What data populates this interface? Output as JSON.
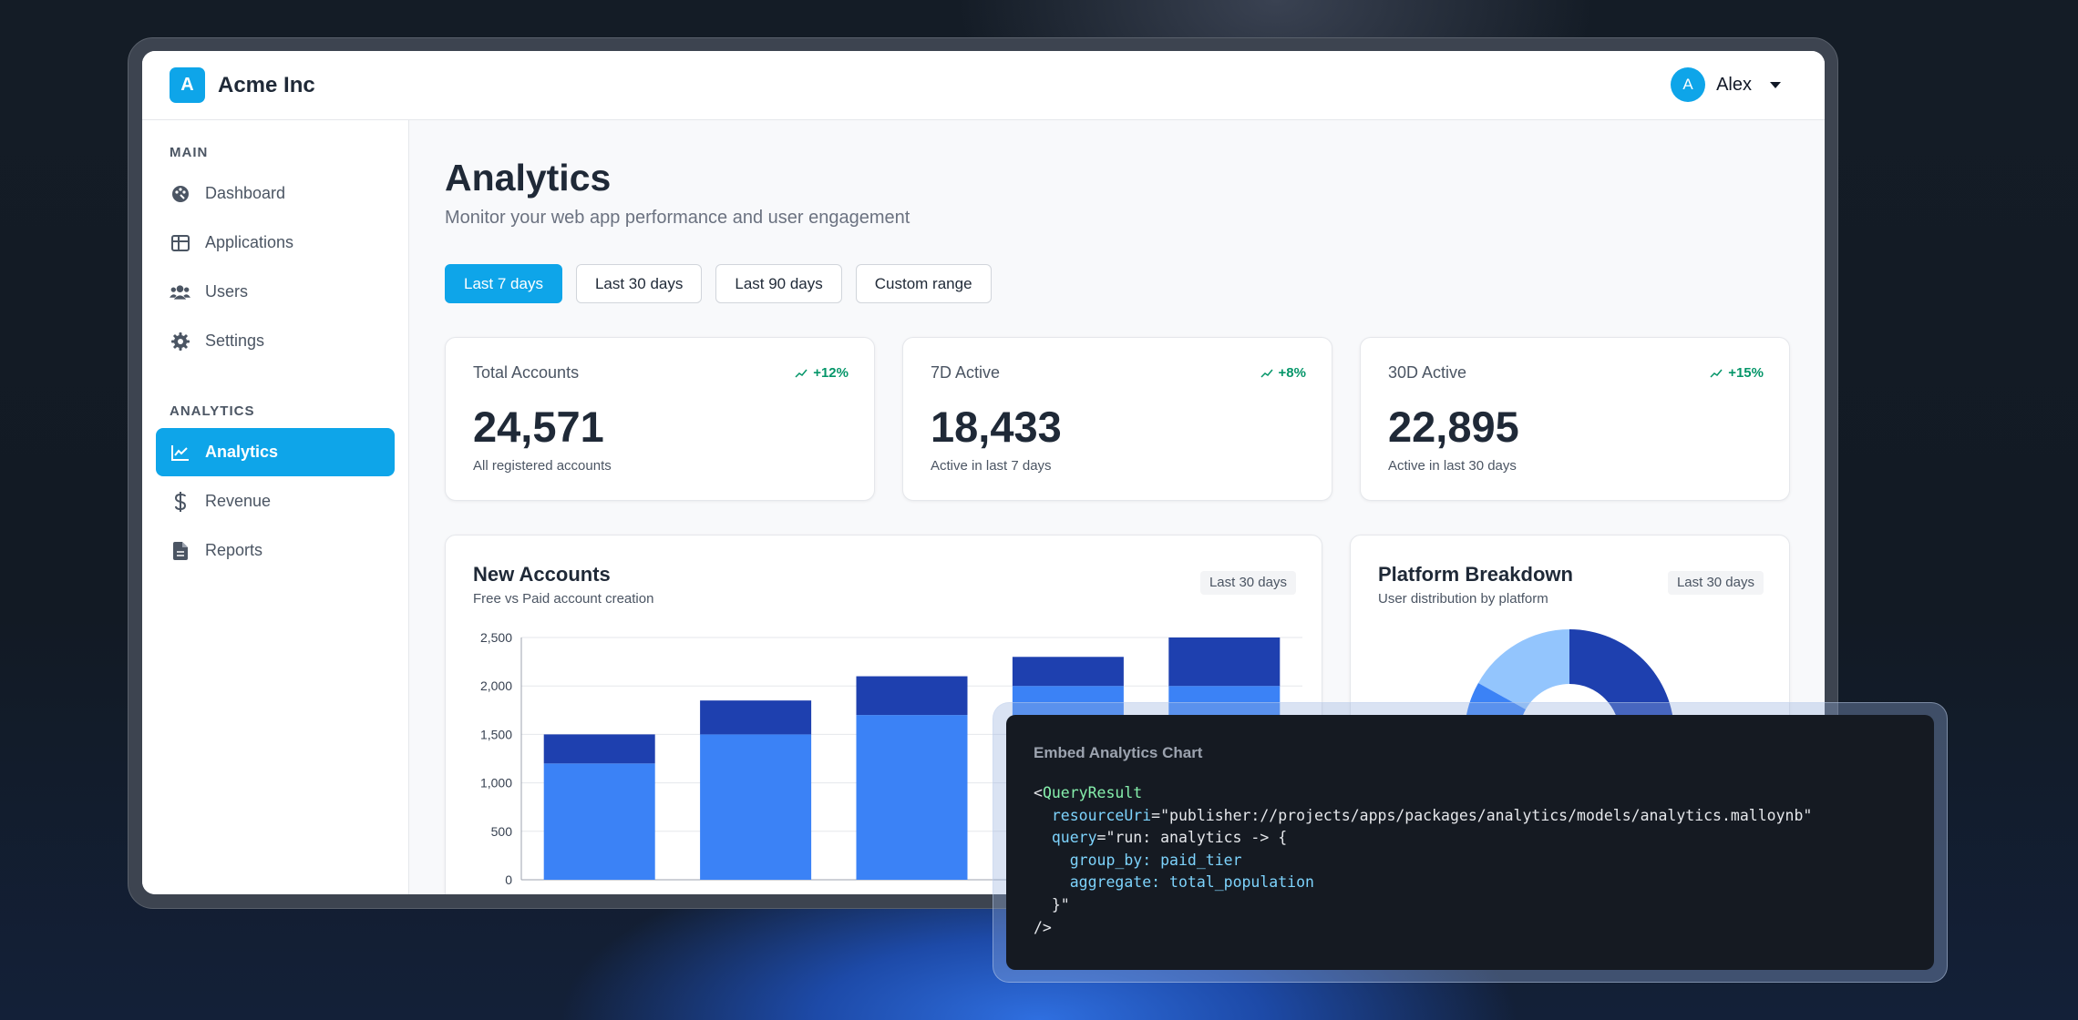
{
  "app": {
    "brand_initial": "A",
    "brand_name": "Acme Inc",
    "user": {
      "initial": "A",
      "name": "Alex"
    }
  },
  "sidebar": {
    "sections": [
      {
        "label": "MAIN"
      },
      {
        "label": "ANALYTICS"
      }
    ],
    "items": [
      {
        "label": "Dashboard",
        "icon": "palette-icon"
      },
      {
        "label": "Applications",
        "icon": "grid-icon"
      },
      {
        "label": "Users",
        "icon": "users-icon"
      },
      {
        "label": "Settings",
        "icon": "gear-icon"
      },
      {
        "label": "Analytics",
        "icon": "chart-line-icon",
        "active": true
      },
      {
        "label": "Revenue",
        "icon": "dollar-icon"
      },
      {
        "label": "Reports",
        "icon": "document-icon"
      }
    ]
  },
  "page": {
    "title": "Analytics",
    "subtitle": "Monitor your web app performance and user engagement",
    "ranges": [
      "Last 7 days",
      "Last 30 days",
      "Last 90 days",
      "Custom range"
    ],
    "active_range": "Last 7 days"
  },
  "stats": [
    {
      "label": "Total Accounts",
      "trend": "+12%",
      "value": "24,571",
      "caption": "All registered accounts"
    },
    {
      "label": "7D Active",
      "trend": "+8%",
      "value": "18,433",
      "caption": "Active in last 7 days"
    },
    {
      "label": "30D Active",
      "trend": "+15%",
      "value": "22,895",
      "caption": "Active in last 30 days"
    }
  ],
  "new_accounts": {
    "title": "New Accounts",
    "subtitle": "Free vs Paid account creation",
    "badge": "Last 30 days"
  },
  "platform": {
    "title": "Platform Breakdown",
    "subtitle": "User distribution by platform",
    "badge": "Last 30 days"
  },
  "chart_data": [
    {
      "type": "bar",
      "title": "New Accounts",
      "stacked": true,
      "ylim": [
        0,
        2500
      ],
      "yticks": [
        "0",
        "500",
        "1,000",
        "1,500",
        "2,000",
        "2,500"
      ],
      "ytick_values": [
        0,
        500,
        1000,
        1500,
        2000,
        2500
      ],
      "grid": true,
      "series": [
        {
          "values": [
            1200,
            1500,
            1700,
            2000,
            2000
          ],
          "color": "#3b82f6"
        },
        {
          "values": [
            300,
            350,
            400,
            300,
            500
          ],
          "color": "#1e40af"
        }
      ]
    },
    {
      "type": "pie",
      "title": "Platform Breakdown",
      "colors": [
        "#1e40af",
        "#3b82f6",
        "#93c5fd"
      ]
    }
  ],
  "embed": {
    "title": "Embed Analytics Chart",
    "tag_open": "QueryResult",
    "attr_resource": "resourceUri",
    "resource_value": "\"publisher://projects/apps/packages/analytics/models/analytics.malloynb\"",
    "attr_query": "query",
    "query_line1": "\"run: analytics -> {",
    "group_key": "group_by:",
    "group_val": "paid_tier",
    "agg_key": "aggregate:",
    "agg_val": "total_population",
    "query_close": "}\"",
    "tag_close": "/>"
  }
}
